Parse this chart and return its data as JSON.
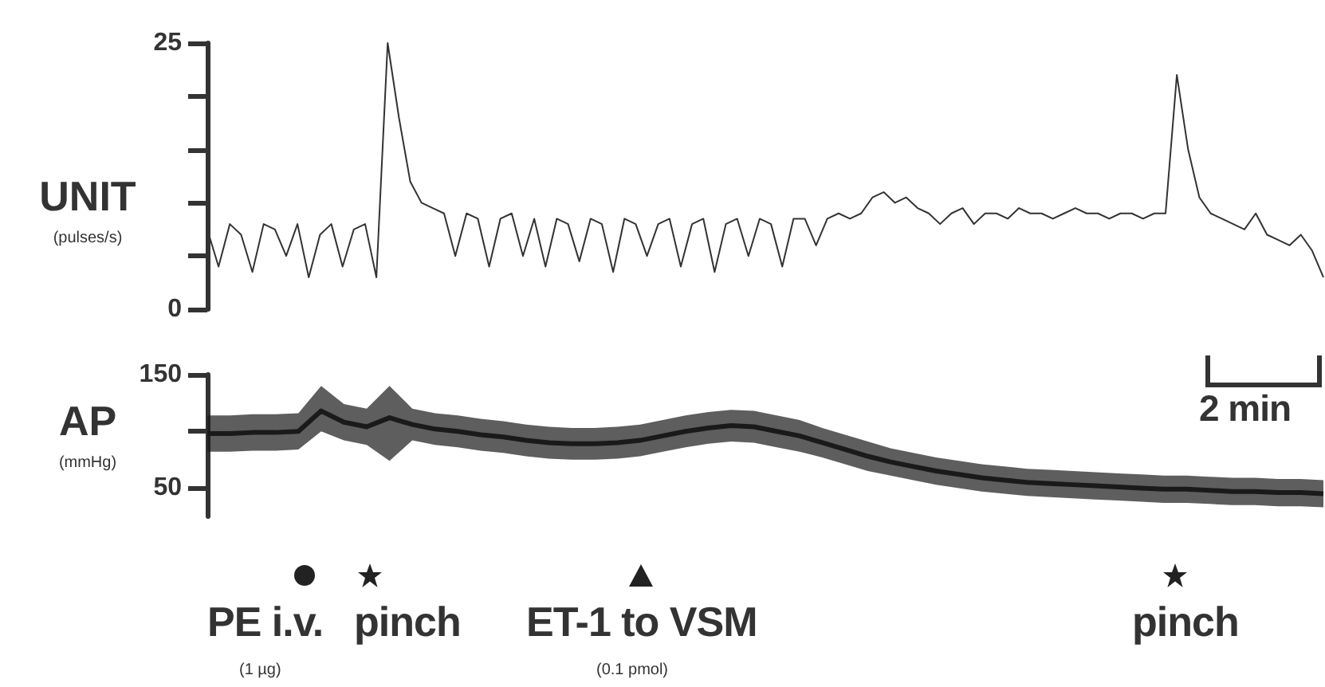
{
  "chart_data": [
    {
      "type": "line",
      "ylabel": "UNIT\n(pulses/s)",
      "categories": [
        null,
        null,
        null,
        null,
        null,
        null,
        null,
        null,
        null,
        null,
        null,
        null,
        null,
        null,
        null,
        null,
        null,
        null,
        null,
        null,
        null,
        null,
        null,
        null,
        null,
        null,
        null,
        null,
        null,
        null,
        null,
        null,
        null,
        null,
        null,
        null,
        null,
        null,
        null,
        null,
        null,
        null,
        null,
        null,
        null,
        null,
        null,
        null,
        null,
        null,
        null,
        null,
        null,
        null,
        null,
        null,
        null,
        null,
        null,
        null,
        null,
        null,
        null,
        null,
        null,
        null,
        null,
        null,
        null,
        null,
        null,
        null,
        null,
        null,
        null,
        null,
        null,
        null,
        null,
        null,
        null,
        null,
        null,
        null,
        null,
        null,
        null,
        null,
        null,
        null,
        null,
        null,
        null,
        null,
        null,
        null,
        null,
        null,
        null,
        null
      ],
      "series": [
        {
          "color": "#333333",
          "values": [
            7.5,
            4,
            8,
            7,
            3.5,
            8,
            7.5,
            5,
            8,
            3,
            7,
            8,
            4,
            7.5,
            8,
            3,
            25,
            18,
            12,
            10,
            9.5,
            9,
            5,
            9,
            8.5,
            4,
            8.5,
            9,
            5,
            8.5,
            4,
            8.5,
            8,
            4.5,
            8.5,
            8,
            3.5,
            8.5,
            8,
            5,
            8,
            8.5,
            4,
            8,
            8.5,
            3.5,
            8,
            8.5,
            5,
            8.5,
            8,
            4,
            8.5,
            8.5,
            6,
            8.5,
            9,
            8.5,
            9,
            10.5,
            11,
            10,
            10.5,
            9.5,
            9,
            8,
            9,
            9.5,
            8,
            9,
            9,
            8.5,
            9.5,
            9,
            9,
            8.5,
            9,
            9.5,
            9,
            9,
            8.5,
            9,
            9,
            8.5,
            9,
            9,
            22,
            15,
            10.5,
            9,
            8.5,
            8,
            7.5,
            9,
            7,
            6.5,
            6,
            7,
            5.5,
            3
          ]
        }
      ],
      "ylim": [
        0,
        25
      ],
      "yticks": [
        0,
        {
          "value": 5,
          "label": null
        },
        {
          "value": 10,
          "label": null
        },
        {
          "value": 15,
          "label": null
        },
        {
          "value": 20,
          "label": null
        },
        25
      ],
      "tick_labels": "y",
      "grid": false,
      "marker": "none",
      "line_style": "solid"
    },
    {
      "type": "line",
      "ylabel": "AP\n(mmHg)",
      "categories": [
        null,
        null,
        null,
        null,
        null,
        null,
        null,
        null,
        null,
        null,
        null,
        null,
        null,
        null,
        null,
        null,
        null,
        null,
        null,
        null,
        null,
        null,
        null,
        null,
        null,
        null,
        null,
        null,
        null,
        null,
        null,
        null,
        null,
        null,
        null,
        null,
        null,
        null,
        null,
        null,
        null,
        null,
        null,
        null,
        null,
        null,
        null,
        null,
        null,
        null
      ],
      "series": [
        {
          "color": "#1a1a1a",
          "values": [
            98,
            98,
            99,
            99,
            100,
            118,
            108,
            104,
            112,
            106,
            102,
            100,
            97,
            95,
            92,
            90,
            89,
            89,
            90,
            92,
            96,
            100,
            103,
            105,
            104,
            100,
            96,
            90,
            84,
            78,
            73,
            69,
            65,
            62,
            59,
            57,
            55,
            54,
            53,
            52,
            51,
            50,
            49,
            49,
            48,
            47,
            47,
            46,
            46,
            45
          ],
          "lower": [
            82,
            82,
            83,
            83,
            84,
            100,
            92,
            88,
            74,
            92,
            88,
            86,
            83,
            81,
            78,
            76,
            75,
            75,
            76,
            78,
            82,
            86,
            89,
            91,
            90,
            86,
            82,
            77,
            71,
            65,
            61,
            57,
            53,
            50,
            47,
            45,
            43,
            42,
            41,
            40,
            39,
            38,
            37,
            37,
            36,
            35,
            35,
            34,
            34,
            33
          ],
          "upper": [
            114,
            114,
            115,
            115,
            116,
            140,
            124,
            120,
            140,
            120,
            116,
            114,
            111,
            109,
            106,
            104,
            103,
            103,
            104,
            106,
            110,
            114,
            117,
            119,
            118,
            114,
            110,
            103,
            97,
            91,
            85,
            81,
            77,
            74,
            71,
            69,
            67,
            66,
            65,
            64,
            63,
            62,
            61,
            61,
            60,
            59,
            59,
            58,
            58,
            57
          ]
        }
      ],
      "ylim": [
        25,
        150
      ],
      "yticks": [
        50,
        {
          "value": 100,
          "label": null
        },
        150
      ],
      "tick_labels": "y",
      "grid": false,
      "marker": "none",
      "line_style": "solid",
      "annotations": [
        "PE i.v.",
        "(1 µg)",
        "pinch",
        "ET-1 to VSM",
        "(0.1 pmol)",
        "pinch",
        "2 min"
      ]
    }
  ]
}
